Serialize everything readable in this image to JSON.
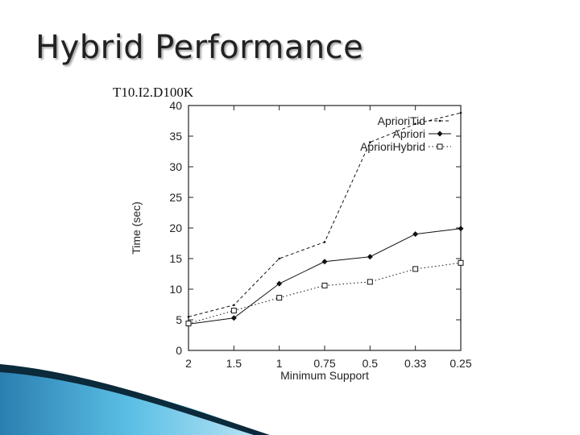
{
  "slide": {
    "title": "Hybrid Performance"
  },
  "colors": {
    "accent_blue": "#3ba3d0",
    "accent_dark": "#0b2a3b",
    "series": "#111111"
  },
  "chart_data": {
    "type": "line",
    "title": "T10.I2.D100K",
    "xlabel": "Minimum Support",
    "ylabel": "Time (sec)",
    "categories": [
      "2",
      "1.5",
      "1",
      "0.75",
      "0.5",
      "0.33",
      "0.25"
    ],
    "ylim": [
      0,
      40
    ],
    "yticks": [
      0,
      5,
      10,
      15,
      20,
      25,
      30,
      35,
      40
    ],
    "grid": false,
    "legend_position": "top-right",
    "series": [
      {
        "name": "AprioriTid",
        "style": "dashed",
        "marker": "dot",
        "values": [
          5.5,
          7.4,
          15.0,
          17.7,
          34.0,
          37.0,
          38.8
        ]
      },
      {
        "name": "Apriori",
        "style": "solid",
        "marker": "diamond",
        "values": [
          4.3,
          5.3,
          10.9,
          14.5,
          15.3,
          19.0,
          19.9
        ]
      },
      {
        "name": "AprioriHybrid",
        "style": "dotted",
        "marker": "square",
        "values": [
          4.4,
          6.5,
          8.6,
          10.6,
          11.2,
          13.3,
          14.3
        ]
      }
    ]
  }
}
